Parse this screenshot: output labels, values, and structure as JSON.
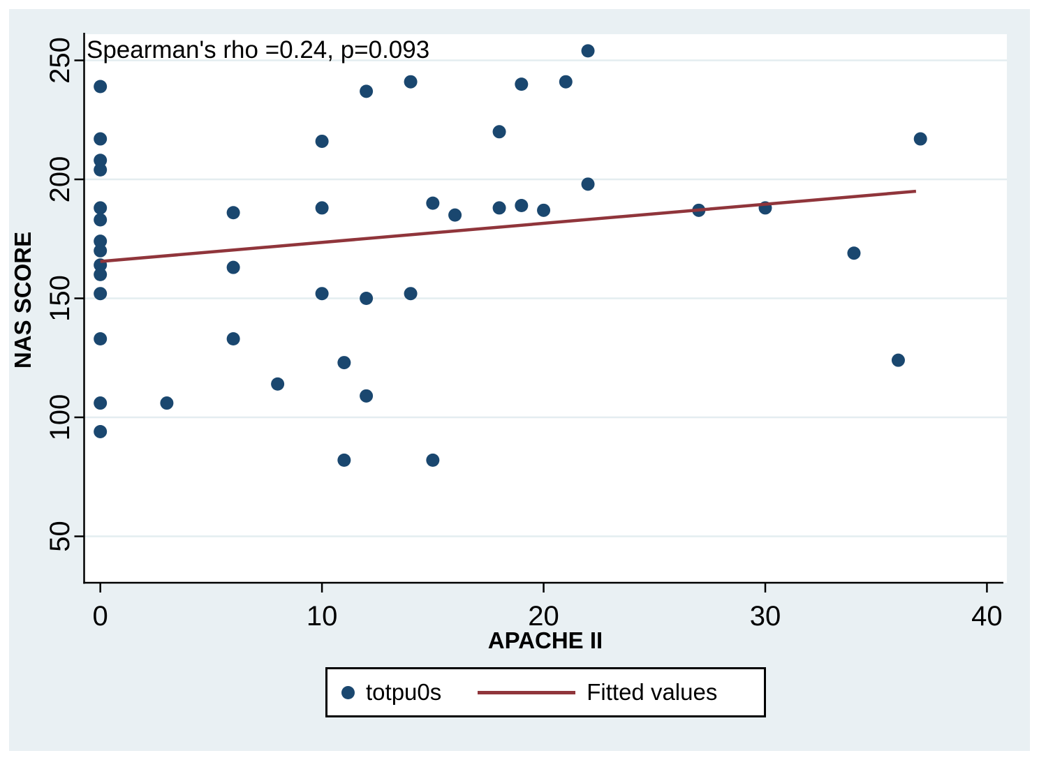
{
  "chart_data": {
    "type": "scatter",
    "annotation": "Spearman's rho =0.24, p=0.093",
    "xlabel": "APACHE II",
    "ylabel": "NAS SCORE",
    "x_ticks": [
      0,
      10,
      20,
      30,
      40
    ],
    "y_ticks": [
      50,
      100,
      150,
      200,
      250
    ],
    "xlim": [
      -0.73,
      40.9
    ],
    "ylim": [
      30.5,
      261
    ],
    "grid": true,
    "legend_position": "bottom-center",
    "series": [
      {
        "name": "totpu0s",
        "type": "scatter",
        "color": "#1a476f",
        "points": [
          [
            0,
            239
          ],
          [
            0,
            217
          ],
          [
            0,
            208
          ],
          [
            0,
            204
          ],
          [
            0,
            188
          ],
          [
            0,
            183
          ],
          [
            0,
            174
          ],
          [
            0,
            170
          ],
          [
            0,
            164
          ],
          [
            0,
            160
          ],
          [
            0,
            152
          ],
          [
            0,
            133
          ],
          [
            0,
            106
          ],
          [
            0,
            94
          ],
          [
            3,
            106
          ],
          [
            6,
            186
          ],
          [
            6,
            163
          ],
          [
            6,
            133
          ],
          [
            8,
            114
          ],
          [
            10,
            216
          ],
          [
            10,
            188
          ],
          [
            10,
            152
          ],
          [
            11,
            123
          ],
          [
            11,
            82
          ],
          [
            12,
            237
          ],
          [
            12,
            150
          ],
          [
            12,
            109
          ],
          [
            14,
            241
          ],
          [
            14,
            152
          ],
          [
            15,
            190
          ],
          [
            15,
            82
          ],
          [
            16,
            185
          ],
          [
            18,
            220
          ],
          [
            18,
            188
          ],
          [
            19,
            240
          ],
          [
            19,
            189
          ],
          [
            20,
            187
          ],
          [
            21,
            241
          ],
          [
            22,
            254
          ],
          [
            22,
            198
          ],
          [
            27,
            187
          ],
          [
            30,
            188
          ],
          [
            34,
            169
          ],
          [
            36,
            124
          ],
          [
            37,
            217
          ]
        ]
      },
      {
        "name": "Fitted values",
        "type": "line",
        "color": "#90353b",
        "endpoints": [
          [
            0,
            165.5
          ],
          [
            36.8,
            195
          ]
        ]
      }
    ],
    "legend": [
      {
        "label": "totpu0s",
        "marker": "dot"
      },
      {
        "label": "Fitted values",
        "marker": "line"
      }
    ],
    "colors": {
      "marker": "#1a476f",
      "fitted_line": "#90353b",
      "grid": "#e4edf0",
      "axis": "#000000",
      "plot_background": "#ffffff",
      "figure_background": "#e9f0f3",
      "text": "#000000",
      "legend_border": "#000000"
    }
  }
}
